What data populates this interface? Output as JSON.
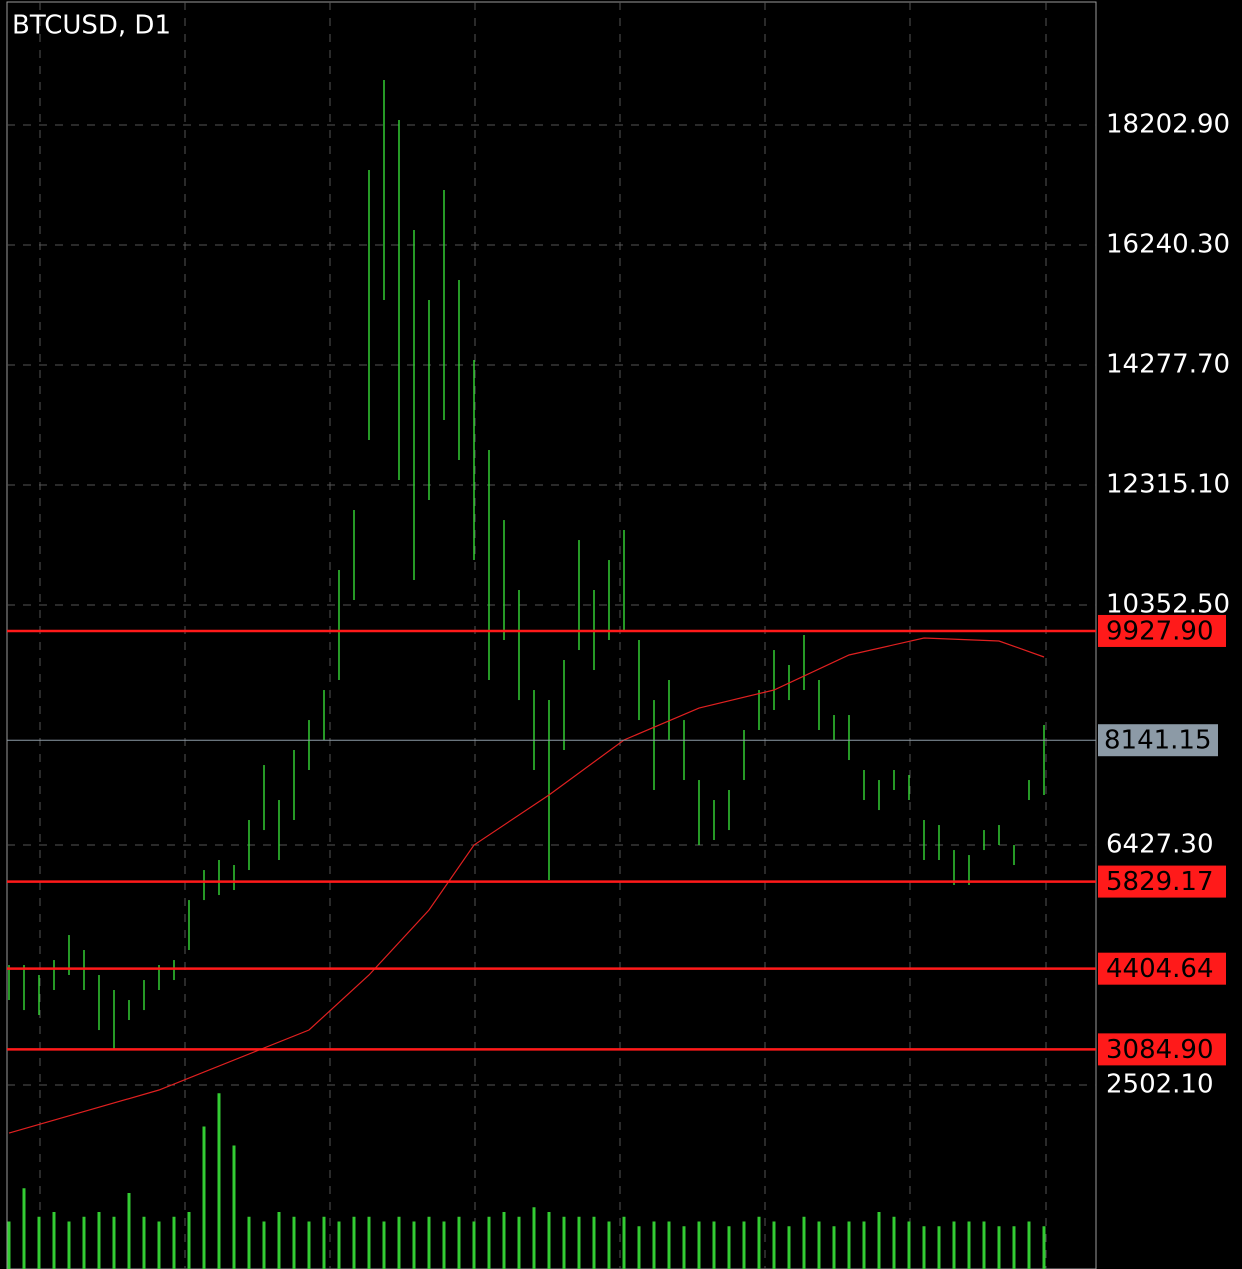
{
  "chart_data": {
    "type": "ohlc",
    "title": "BTCUSD, D1",
    "color": "#33cc33",
    "ma_color": "#e02020",
    "level_color": "#ff1a1a",
    "current_color": "#8c9aa6",
    "ylim": [
      -507,
      20247
    ],
    "yticks": [
      {
        "value": 18202.9,
        "label": "18202.90"
      },
      {
        "value": 16240.3,
        "label": "16240.30"
      },
      {
        "value": 14277.7,
        "label": "14277.70"
      },
      {
        "value": 12315.1,
        "label": "12315.10"
      },
      {
        "value": 10352.5,
        "label": "10352.50"
      },
      {
        "value": 6427.3,
        "label": "6427.30"
      },
      {
        "value": 2502.1,
        "label": "2502.10"
      }
    ],
    "grid": true,
    "high": [
      4464,
      4464,
      4301,
      4546,
      4955,
      4710,
      4301,
      4056,
      3892,
      4219,
      4464,
      4546,
      5527,
      6018,
      6182,
      6100,
      6836,
      7735,
      7163,
      7981,
      8471,
      8962,
      10925,
      11906,
      17467,
      18939,
      18284,
      16485,
      15340,
      17140,
      15668,
      14359,
      12887,
      11742,
      10598,
      8962,
      8798,
      9453,
      11415,
      10598,
      11088,
      11579,
      9780,
      8798,
      9126,
      8471,
      7490,
      7163,
      7327,
      8308,
      8962,
      9616,
      9371,
      9862,
      9126,
      8553,
      8553,
      7654,
      7490,
      7654,
      7572,
      6836,
      6754,
      6345,
      6263,
      6672,
      6754,
      6427,
      7490,
      8390
    ],
    "low": [
      3892,
      3728,
      3647,
      4056,
      4301,
      4056,
      3401,
      3074,
      3565,
      3728,
      4056,
      4219,
      4710,
      5527,
      5609,
      5691,
      6018,
      6672,
      6182,
      6836,
      7654,
      8144,
      9126,
      10434,
      13051,
      15340,
      12397,
      10761,
      12069,
      13378,
      12724,
      11088,
      9126,
      9780,
      8798,
      7654,
      5855,
      7981,
      9616,
      9289,
      9780,
      9943,
      8471,
      7327,
      8144,
      7490,
      6427,
      6509,
      6672,
      7490,
      8308,
      8635,
      8798,
      8962,
      8308,
      8144,
      7817,
      7163,
      6999,
      7327,
      7163,
      6182,
      6182,
      5773,
      5773,
      6345,
      6427,
      6100,
      7163,
      7245
    ],
    "volume": [
      50,
      85,
      55,
      60,
      50,
      55,
      60,
      55,
      80,
      55,
      50,
      55,
      60,
      150,
      185,
      130,
      55,
      50,
      60,
      55,
      50,
      55,
      50,
      55,
      55,
      50,
      55,
      50,
      55,
      50,
      55,
      50,
      55,
      60,
      55,
      65,
      60,
      55,
      55,
      55,
      50,
      55,
      45,
      50,
      50,
      45,
      50,
      50,
      45,
      50,
      55,
      50,
      45,
      55,
      50,
      45,
      50,
      50,
      60,
      55,
      50,
      45,
      45,
      50,
      50,
      50,
      45,
      45,
      50,
      45
    ],
    "volume_lim": [
      0,
      200
    ],
    "ma": {
      "x": [
        0,
        10,
        20,
        24,
        28,
        31,
        36,
        41,
        46,
        51,
        56,
        61,
        66,
        69
      ],
      "values": [
        1716,
        2420,
        3401,
        4301,
        5364,
        6427,
        7245,
        8144,
        8667,
        8962,
        9535,
        9812,
        9763,
        9502
      ]
    },
    "levels": [
      {
        "value": 9927.9,
        "label": "9927.90"
      },
      {
        "value": 5829.17,
        "label": "5829.17"
      },
      {
        "value": 4404.64,
        "label": "4404.64"
      },
      {
        "value": 3084.9,
        "label": "3084.90"
      }
    ],
    "current_price": {
      "value": 8141.15,
      "label": "8141.15"
    }
  }
}
